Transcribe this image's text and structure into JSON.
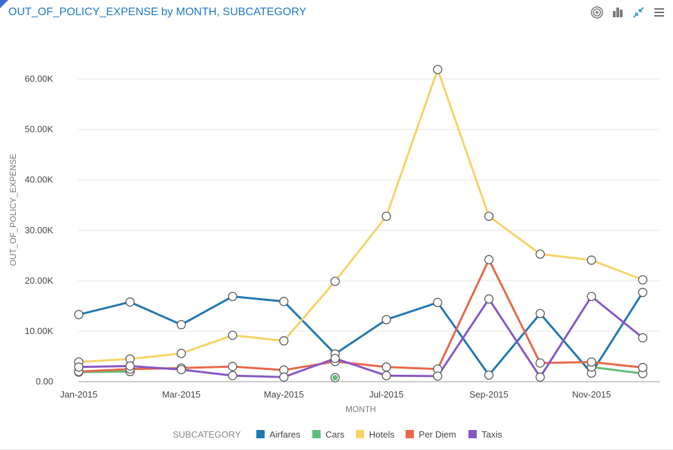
{
  "header": {
    "title": "OUT_OF_POLICY_EXPENSE by MONTH, SUBCATEGORY",
    "tools": [
      {
        "name": "target-icon"
      },
      {
        "name": "bar-chart-icon"
      },
      {
        "name": "collapse-icon"
      },
      {
        "name": "menu-icon"
      }
    ]
  },
  "colors": {
    "title": "#1f78c8",
    "Airfares": "#1f77b4",
    "Cars": "#5fbf79",
    "Hotels": "#f5d366",
    "Per Diem": "#e8664a",
    "Taxis": "#8656c5"
  },
  "chart_data": {
    "type": "line",
    "title": "OUT_OF_POLICY_EXPENSE by MONTH, SUBCATEGORY",
    "xlabel": "MONTH",
    "ylabel": "OUT_OF_POLICY_EXPENSE",
    "categories": [
      "Jan-2015",
      "Feb-2015",
      "Mar-2015",
      "Apr-2015",
      "May-2015",
      "Jun-2015",
      "Jul-2015",
      "Aug-2015",
      "Sep-2015",
      "Oct-2015",
      "Nov-2015",
      "Dec-2015"
    ],
    "x_tick_labels": [
      "Jan-2015",
      "",
      "Mar-2015",
      "",
      "May-2015",
      "",
      "Jul-2015",
      "",
      "Sep-2015",
      "",
      "Nov-2015",
      ""
    ],
    "ylim": [
      0,
      62000
    ],
    "y_ticks": [
      0,
      10000,
      20000,
      30000,
      40000,
      50000,
      60000
    ],
    "y_tick_labels": [
      "0.00",
      "10.00K",
      "20.00K",
      "30.00K",
      "40.00K",
      "50.00K",
      "60.00K"
    ],
    "grid": true,
    "legend_title": "SUBCATEGORY",
    "legend_position": "bottom",
    "series": [
      {
        "name": "Airfares",
        "values": [
          13300,
          15800,
          11300,
          16900,
          15900,
          5500,
          12300,
          15700,
          1300,
          13500,
          1700,
          17700
        ]
      },
      {
        "name": "Cars",
        "values": [
          1900,
          2000,
          null,
          null,
          null,
          800,
          null,
          null,
          null,
          null,
          2900,
          1600
        ]
      },
      {
        "name": "Hotels",
        "values": [
          3900,
          4500,
          5600,
          9200,
          8100,
          19900,
          32800,
          61900,
          32800,
          25300,
          24100,
          20200
        ]
      },
      {
        "name": "Per Diem",
        "values": [
          2000,
          2500,
          2700,
          3000,
          2300,
          4000,
          2900,
          2500,
          24200,
          3700,
          3900,
          2800
        ]
      },
      {
        "name": "Taxis",
        "values": [
          2900,
          3100,
          2400,
          1200,
          900,
          4600,
          1200,
          1100,
          16400,
          900,
          16900,
          8700
        ]
      }
    ]
  }
}
